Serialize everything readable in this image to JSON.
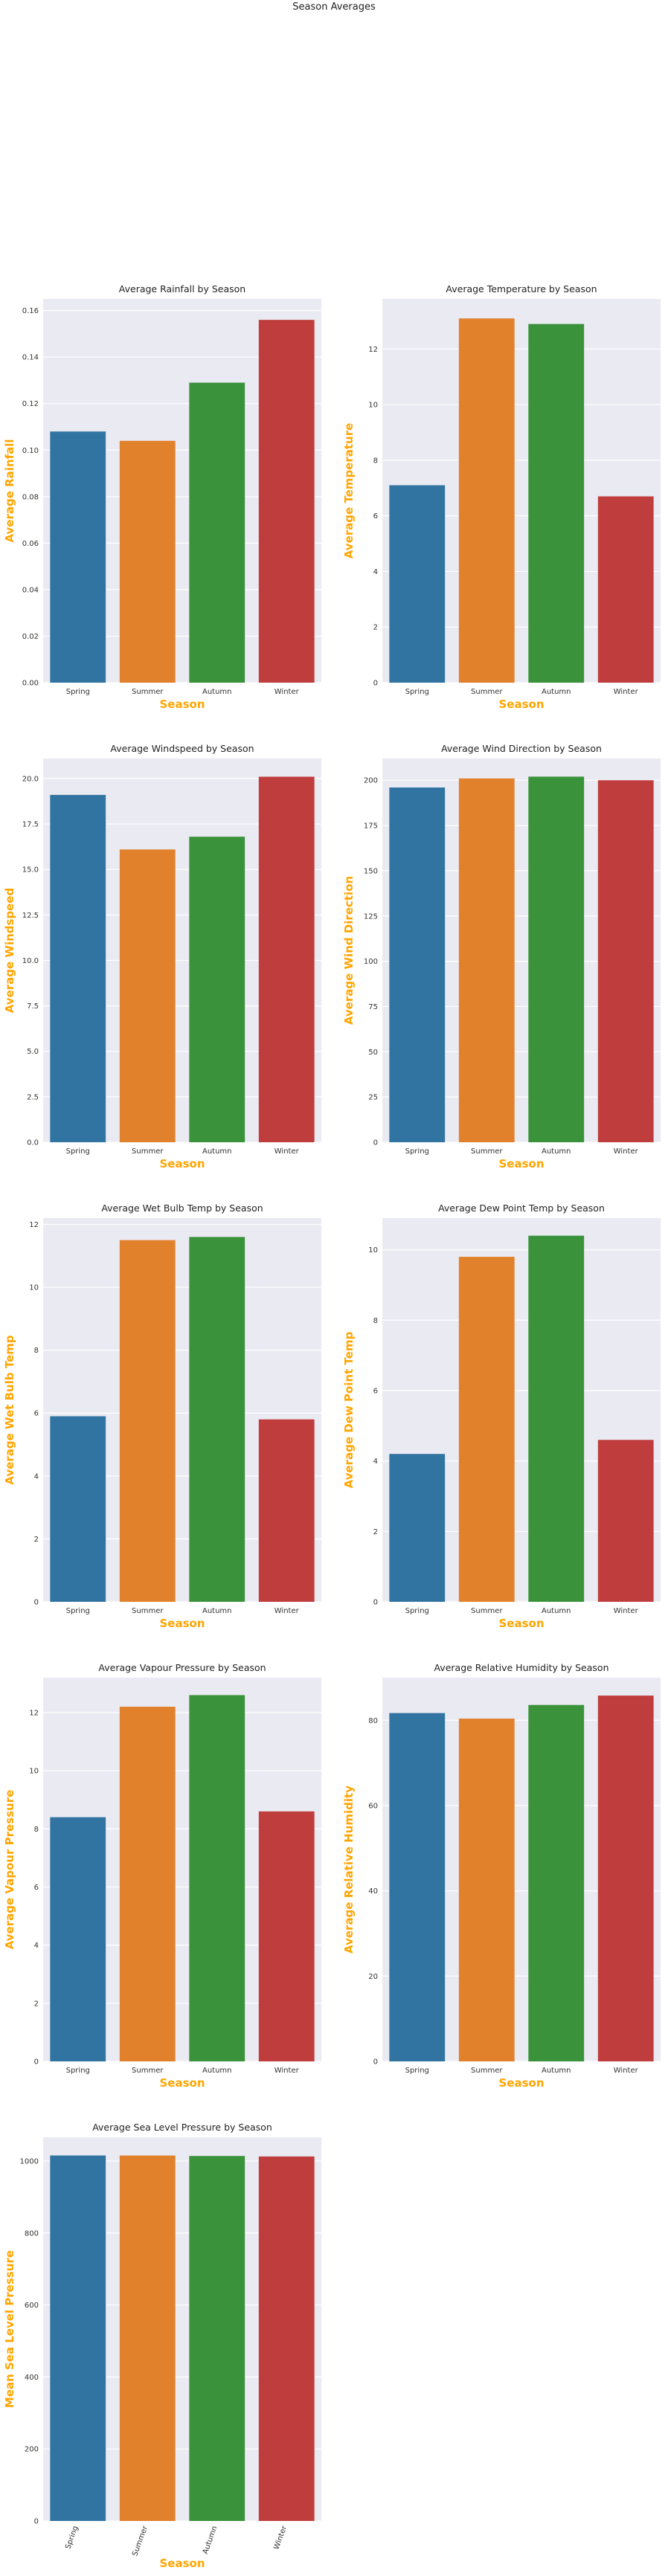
{
  "figure": {
    "title": "Season Averages"
  },
  "palette": {
    "bg": "#EAEAF2",
    "grid": "#FFFFFF",
    "label_color": "#FFA500",
    "bars": [
      "#3274A1",
      "#E1812C",
      "#3A923A",
      "#C03D3E"
    ]
  },
  "chart_data": [
    {
      "type": "bar",
      "title": "Average Rainfall by Season",
      "xlabel": "Season",
      "ylabel": "Average Rainfall",
      "categories": [
        "Spring",
        "Summer",
        "Autumn",
        "Winter"
      ],
      "values": [
        0.108,
        0.104,
        0.129,
        0.156
      ],
      "ylim": [
        0,
        0.165
      ],
      "yticks": [
        0.0,
        0.02,
        0.04,
        0.06,
        0.08,
        0.1,
        0.12,
        0.14,
        0.16
      ],
      "ytick_labels": [
        "0.00",
        "0.02",
        "0.04",
        "0.06",
        "0.08",
        "0.10",
        "0.12",
        "0.14",
        "0.16"
      ],
      "rotate_x": false
    },
    {
      "type": "bar",
      "title": "Average Temperature by Season",
      "xlabel": "Season",
      "ylabel": "Average Temperature",
      "categories": [
        "Spring",
        "Summer",
        "Autumn",
        "Winter"
      ],
      "values": [
        7.1,
        13.1,
        12.9,
        6.7
      ],
      "ylim": [
        0,
        13.8
      ],
      "yticks": [
        0,
        2,
        4,
        6,
        8,
        10,
        12
      ],
      "ytick_labels": [
        "0",
        "2",
        "4",
        "6",
        "8",
        "10",
        "12"
      ],
      "rotate_x": false
    },
    {
      "type": "bar",
      "title": "Average Windspeed by Season",
      "xlabel": "Season",
      "ylabel": "Average Windspeed",
      "categories": [
        "Spring",
        "Summer",
        "Autumn",
        "Winter"
      ],
      "values": [
        19.1,
        16.1,
        16.8,
        20.1
      ],
      "ylim": [
        0,
        21.1
      ],
      "yticks": [
        0.0,
        2.5,
        5.0,
        7.5,
        10.0,
        12.5,
        15.0,
        17.5,
        20.0
      ],
      "ytick_labels": [
        "0.0",
        "2.5",
        "5.0",
        "7.5",
        "10.0",
        "12.5",
        "15.0",
        "17.5",
        "20.0"
      ],
      "rotate_x": false
    },
    {
      "type": "bar",
      "title": "Average Wind Direction by Season",
      "xlabel": "Season",
      "ylabel": "Average Wind Direction",
      "categories": [
        "Spring",
        "Summer",
        "Autumn",
        "Winter"
      ],
      "values": [
        196,
        201,
        202,
        200
      ],
      "ylim": [
        0,
        212
      ],
      "yticks": [
        0,
        25,
        50,
        75,
        100,
        125,
        150,
        175,
        200
      ],
      "ytick_labels": [
        "0",
        "25",
        "50",
        "75",
        "100",
        "125",
        "150",
        "175",
        "200"
      ],
      "rotate_x": false
    },
    {
      "type": "bar",
      "title": "Average Wet Bulb Temp by Season",
      "xlabel": "Season",
      "ylabel": "Average Wet Bulb Temp",
      "categories": [
        "Spring",
        "Summer",
        "Autumn",
        "Winter"
      ],
      "values": [
        5.9,
        11.5,
        11.6,
        5.8
      ],
      "ylim": [
        0,
        12.2
      ],
      "yticks": [
        0,
        2,
        4,
        6,
        8,
        10,
        12
      ],
      "ytick_labels": [
        "0",
        "2",
        "4",
        "6",
        "8",
        "10",
        "12"
      ],
      "rotate_x": false
    },
    {
      "type": "bar",
      "title": "Average Dew Point Temp by Season",
      "xlabel": "Season",
      "ylabel": "Average Dew Point Temp",
      "categories": [
        "Spring",
        "Summer",
        "Autumn",
        "Winter"
      ],
      "values": [
        4.2,
        9.8,
        10.4,
        4.6
      ],
      "ylim": [
        0,
        10.9
      ],
      "yticks": [
        0,
        2,
        4,
        6,
        8,
        10
      ],
      "ytick_labels": [
        "0",
        "2",
        "4",
        "6",
        "8",
        "10"
      ],
      "rotate_x": false
    },
    {
      "type": "bar",
      "title": "Average Vapour Pressure by Season",
      "xlabel": "Season",
      "ylabel": "Average Vapour Pressure",
      "categories": [
        "Spring",
        "Summer",
        "Autumn",
        "Winter"
      ],
      "values": [
        8.4,
        12.2,
        12.6,
        8.6
      ],
      "ylim": [
        0,
        13.2
      ],
      "yticks": [
        0,
        2,
        4,
        6,
        8,
        10,
        12
      ],
      "ytick_labels": [
        "0",
        "2",
        "4",
        "6",
        "8",
        "10",
        "12"
      ],
      "rotate_x": false
    },
    {
      "type": "bar",
      "title": "Average Relative Humidity by Season",
      "xlabel": "Season",
      "ylabel": "Average Relative Humidity",
      "categories": [
        "Spring",
        "Summer",
        "Autumn",
        "Winter"
      ],
      "values": [
        81.7,
        80.4,
        83.6,
        85.8
      ],
      "ylim": [
        0,
        90
      ],
      "yticks": [
        0,
        20,
        40,
        60,
        80
      ],
      "ytick_labels": [
        "0",
        "20",
        "40",
        "60",
        "80"
      ],
      "rotate_x": false
    },
    {
      "type": "bar",
      "title": "Average Sea Level Pressure by Season",
      "xlabel": "Season",
      "ylabel": "Mean Sea Level Pressure",
      "categories": [
        "Spring",
        "Summer",
        "Autumn",
        "Winter"
      ],
      "values": [
        1015.4,
        1015.2,
        1013.9,
        1012.6
      ],
      "ylim": [
        0,
        1066
      ],
      "yticks": [
        0,
        200,
        400,
        600,
        800,
        1000
      ],
      "ytick_labels": [
        "0",
        "200",
        "400",
        "600",
        "800",
        "1000"
      ],
      "rotate_x": true
    }
  ]
}
